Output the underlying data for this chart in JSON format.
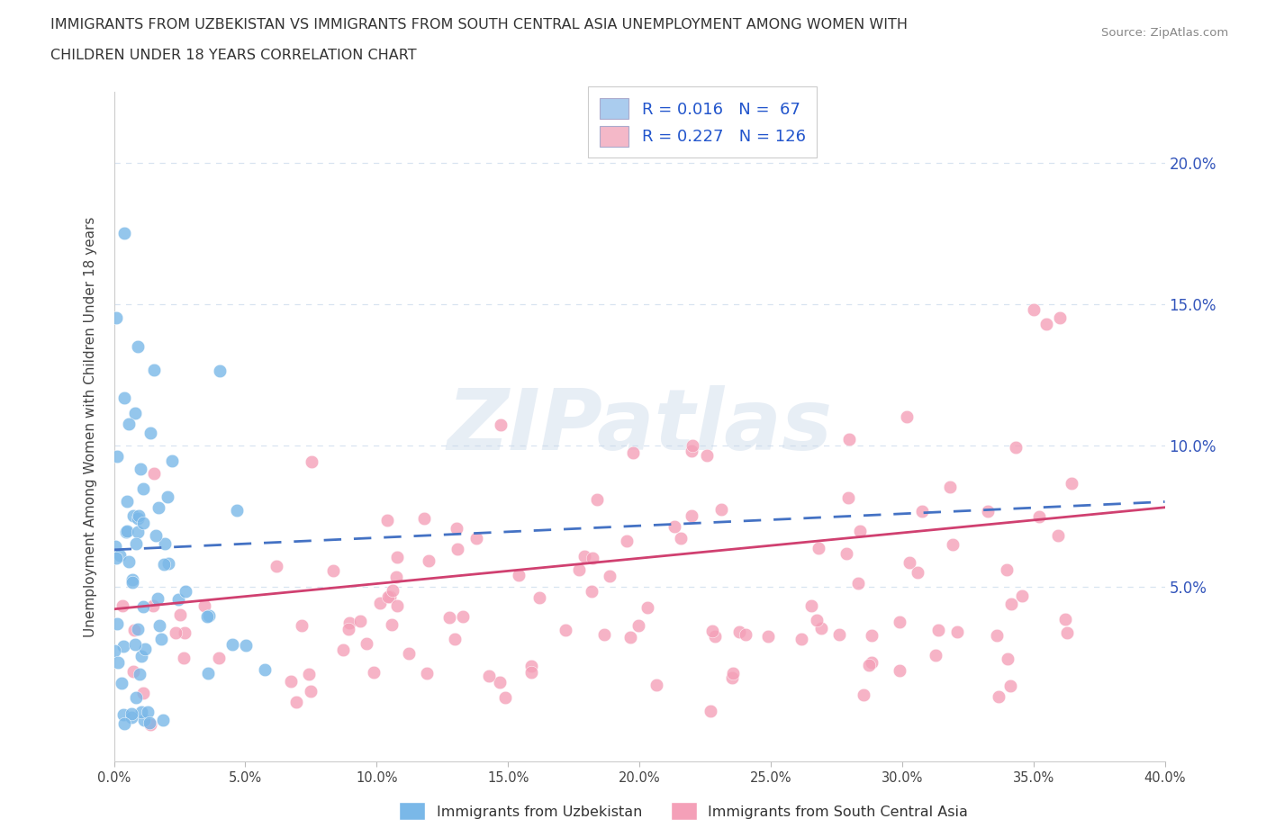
{
  "title_line1": "IMMIGRANTS FROM UZBEKISTAN VS IMMIGRANTS FROM SOUTH CENTRAL ASIA UNEMPLOYMENT AMONG WOMEN WITH",
  "title_line2": "CHILDREN UNDER 18 YEARS CORRELATION CHART",
  "source": "Source: ZipAtlas.com",
  "ylabel": "Unemployment Among Women with Children Under 18 years",
  "uzbekistan_color": "#7ab8e8",
  "south_central_color": "#f4a0b8",
  "trend_uzbekistan_color": "#4472c4",
  "trend_south_central_color": "#c0406080",
  "legend_uzb_color": "#aaccee",
  "legend_sca_color": "#f4b8c8",
  "R_uzb": 0.016,
  "N_uzb": 67,
  "R_sca": 0.227,
  "N_sca": 126,
  "xlim": [
    0.0,
    0.4
  ],
  "ylim": [
    -0.012,
    0.225
  ],
  "yticks": [
    0.05,
    0.1,
    0.15,
    0.2
  ],
  "ytick_labels": [
    "5.0%",
    "10.0%",
    "15.0%",
    "20.0%"
  ],
  "xticks": [
    0.0,
    0.05,
    0.1,
    0.15,
    0.2,
    0.25,
    0.3,
    0.35,
    0.4
  ],
  "background_color": "#ffffff",
  "grid_color": "#d8e4f0",
  "watermark": "ZIPatlas",
  "label_uzb": "Immigrants from Uzbekistan",
  "label_sca": "Immigrants from South Central Asia"
}
